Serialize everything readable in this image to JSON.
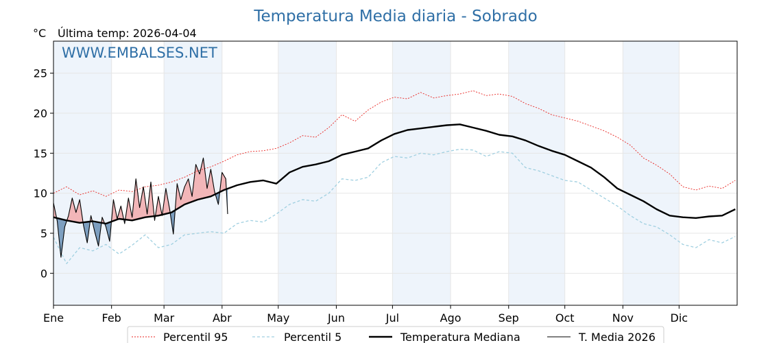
{
  "chart_data": {
    "type": "line",
    "title": "Temperatura Media diaria - Sobrado",
    "subtitle": "Última temp: 2026-04-04",
    "unit": "°C",
    "watermark": "WWW.EMBALSES.NET",
    "ylim": [
      -4,
      29
    ],
    "yticks": [
      0,
      5,
      10,
      15,
      20,
      25
    ],
    "xlim": [
      1,
      366
    ],
    "months": [
      "Ene",
      "Feb",
      "Mar",
      "Abr",
      "May",
      "Jun",
      "Jul",
      "Ago",
      "Sep",
      "Oct",
      "Nov",
      "Dic"
    ],
    "month_start_days": [
      1,
      32,
      60,
      91,
      121,
      152,
      182,
      213,
      244,
      274,
      305,
      335
    ],
    "grid": true,
    "legend_position": "bottom",
    "colors": {
      "p95": "#e8231f",
      "p5": "#9fcfe0",
      "median": "#000000",
      "current": "#000000",
      "above": "#f2b6b8",
      "below": "#7d9fc0",
      "band": "#eef4fb"
    },
    "series": [
      {
        "name": "Percentil 95",
        "key": "p95",
        "x": [
          1,
          8,
          15,
          22,
          29,
          36,
          43,
          50,
          57,
          64,
          71,
          78,
          85,
          92,
          99,
          106,
          113,
          120,
          127,
          134,
          141,
          148,
          155,
          162,
          169,
          176,
          183,
          190,
          197,
          204,
          211,
          218,
          225,
          232,
          239,
          246,
          253,
          260,
          267,
          274,
          281,
          288,
          295,
          302,
          309,
          316,
          323,
          330,
          337,
          344,
          351,
          358,
          365
        ],
        "values": [
          10.0,
          10.8,
          9.8,
          10.3,
          9.6,
          10.4,
          10.2,
          10.8,
          11.0,
          11.4,
          12.0,
          12.8,
          13.3,
          14.0,
          14.8,
          15.2,
          15.3,
          15.6,
          16.3,
          17.2,
          17.0,
          18.2,
          19.8,
          19.0,
          20.4,
          21.4,
          22.0,
          21.8,
          22.6,
          21.9,
          22.2,
          22.4,
          22.8,
          22.2,
          22.4,
          22.1,
          21.2,
          20.6,
          19.8,
          19.4,
          19.0,
          18.4,
          17.8,
          17.0,
          16.0,
          14.4,
          13.5,
          12.4,
          10.8,
          10.4,
          10.9,
          10.6,
          11.6
        ]
      },
      {
        "name": "Percentil 5",
        "key": "p5",
        "x": [
          1,
          8,
          15,
          22,
          29,
          36,
          43,
          50,
          57,
          64,
          71,
          78,
          85,
          92,
          99,
          106,
          113,
          120,
          127,
          134,
          141,
          148,
          155,
          162,
          169,
          176,
          183,
          190,
          197,
          204,
          211,
          218,
          225,
          232,
          239,
          246,
          253,
          260,
          267,
          274,
          281,
          288,
          295,
          302,
          309,
          316,
          323,
          330,
          337,
          344,
          351,
          358,
          365
        ],
        "values": [
          4.5,
          1.2,
          3.2,
          2.8,
          3.6,
          2.4,
          3.5,
          4.8,
          3.2,
          3.6,
          4.8,
          5.0,
          5.2,
          5.0,
          6.2,
          6.6,
          6.4,
          7.4,
          8.6,
          9.2,
          9.0,
          10.0,
          11.8,
          11.6,
          12.0,
          13.8,
          14.6,
          14.4,
          15.0,
          14.8,
          15.2,
          15.5,
          15.4,
          14.6,
          15.2,
          15.0,
          13.2,
          12.8,
          12.2,
          11.6,
          11.4,
          10.4,
          9.4,
          8.4,
          7.2,
          6.2,
          5.8,
          4.8,
          3.6,
          3.2,
          4.2,
          3.8,
          4.6
        ]
      },
      {
        "name": "Temperatura Mediana",
        "key": "median",
        "x": [
          1,
          8,
          15,
          22,
          29,
          36,
          43,
          50,
          57,
          64,
          71,
          78,
          85,
          92,
          99,
          106,
          113,
          120,
          127,
          134,
          141,
          148,
          155,
          162,
          169,
          176,
          183,
          190,
          197,
          204,
          211,
          218,
          225,
          232,
          239,
          246,
          253,
          260,
          267,
          274,
          281,
          288,
          295,
          302,
          309,
          316,
          323,
          330,
          337,
          344,
          351,
          358,
          365
        ],
        "values": [
          7.0,
          6.6,
          6.3,
          6.5,
          6.2,
          6.8,
          6.6,
          7.0,
          7.2,
          7.6,
          8.6,
          9.2,
          9.6,
          10.4,
          11.0,
          11.4,
          11.6,
          11.2,
          12.6,
          13.3,
          13.6,
          14.0,
          14.8,
          15.2,
          15.6,
          16.6,
          17.4,
          17.9,
          18.1,
          18.3,
          18.5,
          18.6,
          18.2,
          17.8,
          17.3,
          17.1,
          16.6,
          15.9,
          15.3,
          14.8,
          14.0,
          13.2,
          12.0,
          10.6,
          9.8,
          9.0,
          8.0,
          7.2,
          7.0,
          6.9,
          7.1,
          7.2,
          8.0
        ]
      },
      {
        "name": "T. Media 2026",
        "key": "current",
        "x": [
          1,
          3,
          5,
          7,
          9,
          11,
          13,
          15,
          17,
          19,
          21,
          23,
          25,
          27,
          29,
          31,
          33,
          35,
          37,
          39,
          41,
          43,
          45,
          47,
          49,
          51,
          53,
          55,
          57,
          59,
          61,
          63,
          65,
          67,
          69,
          71,
          73,
          75,
          77,
          79,
          81,
          83,
          85,
          87,
          89,
          91,
          93,
          94
        ],
        "values": [
          8.8,
          6.5,
          2.0,
          5.8,
          7.2,
          9.4,
          7.6,
          9.2,
          6.0,
          3.8,
          7.2,
          5.2,
          3.4,
          7.0,
          5.8,
          4.0,
          9.2,
          6.8,
          8.4,
          6.2,
          9.4,
          7.0,
          11.8,
          8.2,
          10.8,
          7.4,
          11.4,
          6.6,
          9.6,
          7.2,
          10.6,
          8.0,
          4.9,
          11.2,
          9.2,
          10.8,
          11.8,
          9.6,
          13.6,
          12.4,
          14.4,
          10.6,
          13.0,
          10.2,
          8.6,
          12.6,
          11.8,
          7.4
        ]
      }
    ]
  }
}
